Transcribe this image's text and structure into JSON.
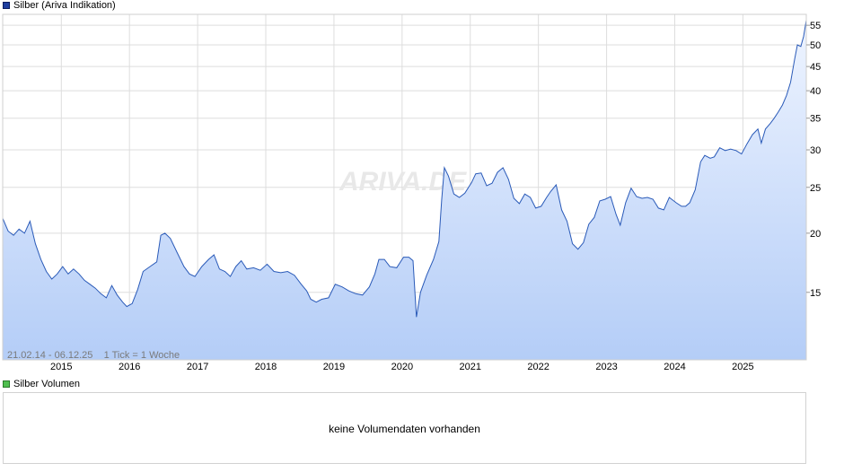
{
  "legend": {
    "price_label": "Silber (Ariva Indikation)",
    "volume_label": "Silber Volumen"
  },
  "colors": {
    "line": "#2a5ab8",
    "fill_top": "#eef4ff",
    "fill_bottom": "#b4cdf7",
    "grid": "#dddddd",
    "border": "#cfcfcf"
  },
  "range_text": "21.02.14 - 06.12.25    1 Tick = 1 Woche",
  "watermark": "ARIVA.DE",
  "volume": {
    "message": "keine Volumendaten vorhanden"
  },
  "chart_data": {
    "type": "area",
    "yscale": "log",
    "ylim": [
      10.8,
      58
    ],
    "xlim": [
      2014.14,
      2025.93
    ],
    "x_ticks": [
      {
        "label": "2015",
        "x": 2015.0
      },
      {
        "label": "2016",
        "x": 2016.0
      },
      {
        "label": "2017",
        "x": 2017.0
      },
      {
        "label": "2018",
        "x": 2018.0
      },
      {
        "label": "2019",
        "x": 2019.0
      },
      {
        "label": "2020",
        "x": 2020.0
      },
      {
        "label": "2021",
        "x": 2021.0
      },
      {
        "label": "2022",
        "x": 2022.0
      },
      {
        "label": "2023",
        "x": 2023.0
      },
      {
        "label": "2024",
        "x": 2024.0
      },
      {
        "label": "2025",
        "x": 2025.0
      }
    ],
    "y_ticks": [
      15,
      20,
      25,
      30,
      35,
      40,
      45,
      50,
      55
    ],
    "grid": true,
    "series": [
      {
        "x": [
          2014.14,
          2014.22,
          2014.3,
          2014.38,
          2014.46,
          2014.54,
          2014.62,
          2014.7,
          2014.78,
          2014.86,
          2014.94,
          2015.02,
          2015.1,
          2015.18,
          2015.26,
          2015.34,
          2015.42,
          2015.5,
          2015.58,
          2015.66,
          2015.74,
          2015.82,
          2015.9,
          2015.96,
          2016.04,
          2016.12,
          2016.2,
          2016.3,
          2016.4,
          2016.46,
          2016.52,
          2016.6,
          2016.7,
          2016.8,
          2016.88,
          2016.96,
          2017.06,
          2017.16,
          2017.24,
          2017.32,
          2017.4,
          2017.48,
          2017.56,
          2017.64,
          2017.72,
          2017.82,
          2017.92,
          2018.02,
          2018.12,
          2018.22,
          2018.32,
          2018.42,
          2018.52,
          2018.6,
          2018.66,
          2018.74,
          2018.82,
          2018.92,
          2019.02,
          2019.12,
          2019.22,
          2019.32,
          2019.42,
          2019.52,
          2019.6,
          2019.66,
          2019.74,
          2019.82,
          2019.92,
          2020.02,
          2020.1,
          2020.16,
          2020.21,
          2020.27,
          2020.36,
          2020.46,
          2020.54,
          2020.58,
          2020.62,
          2020.68,
          2020.76,
          2020.84,
          2020.92,
          2021.02,
          2021.08,
          2021.16,
          2021.24,
          2021.32,
          2021.4,
          2021.48,
          2021.56,
          2021.64,
          2021.72,
          2021.8,
          2021.88,
          2021.96,
          2022.04,
          2022.12,
          2022.18,
          2022.26,
          2022.34,
          2022.42,
          2022.5,
          2022.58,
          2022.66,
          2022.74,
          2022.82,
          2022.9,
          2022.98,
          2023.06,
          2023.14,
          2023.2,
          2023.28,
          2023.36,
          2023.44,
          2023.52,
          2023.6,
          2023.68,
          2023.76,
          2023.84,
          2023.92,
          2024.02,
          2024.1,
          2024.16,
          2024.22,
          2024.3,
          2024.38,
          2024.44,
          2024.52,
          2024.58,
          2024.66,
          2024.74,
          2024.82,
          2024.9,
          2024.98,
          2025.06,
          2025.14,
          2025.22,
          2025.27,
          2025.33,
          2025.4,
          2025.46,
          2025.52,
          2025.58,
          2025.64,
          2025.7,
          2025.76,
          2025.8,
          2025.85,
          2025.89,
          2025.93
        ],
        "y": [
          21.5,
          20.2,
          19.8,
          20.4,
          20.0,
          21.2,
          19.0,
          17.6,
          16.6,
          16.0,
          16.4,
          17.0,
          16.4,
          16.8,
          16.4,
          15.9,
          15.6,
          15.3,
          14.9,
          14.6,
          15.5,
          14.8,
          14.3,
          14.0,
          14.2,
          15.2,
          16.6,
          17.0,
          17.4,
          19.8,
          20.0,
          19.5,
          18.2,
          17.0,
          16.4,
          16.2,
          17.0,
          17.6,
          18.0,
          16.8,
          16.6,
          16.2,
          17.0,
          17.5,
          16.8,
          16.9,
          16.7,
          17.2,
          16.6,
          16.5,
          16.6,
          16.3,
          15.6,
          15.1,
          14.5,
          14.3,
          14.5,
          14.6,
          15.6,
          15.4,
          15.1,
          14.9,
          14.8,
          15.4,
          16.4,
          17.6,
          17.6,
          17.0,
          16.9,
          17.8,
          17.8,
          17.5,
          13.3,
          15.0,
          16.3,
          17.6,
          19.2,
          23.5,
          27.5,
          26.4,
          24.2,
          23.8,
          24.3,
          25.6,
          26.7,
          26.8,
          25.2,
          25.5,
          26.9,
          27.5,
          26.0,
          23.7,
          23.1,
          24.2,
          23.8,
          22.6,
          22.8,
          23.8,
          24.5,
          25.3,
          22.4,
          21.2,
          19.0,
          18.5,
          19.1,
          20.9,
          21.6,
          23.4,
          23.6,
          23.9,
          21.9,
          20.8,
          23.2,
          24.9,
          23.9,
          23.7,
          23.8,
          23.6,
          22.6,
          22.4,
          23.8,
          23.2,
          22.8,
          22.8,
          23.2,
          24.7,
          28.3,
          29.2,
          28.8,
          29.0,
          30.3,
          29.9,
          30.1,
          29.9,
          29.4,
          30.9,
          32.3,
          33.2,
          31.0,
          33.2,
          34.1,
          35.0,
          36.1,
          37.3,
          39.1,
          41.7,
          46.7,
          50.0,
          49.6,
          52.1,
          56.4
        ]
      }
    ]
  }
}
